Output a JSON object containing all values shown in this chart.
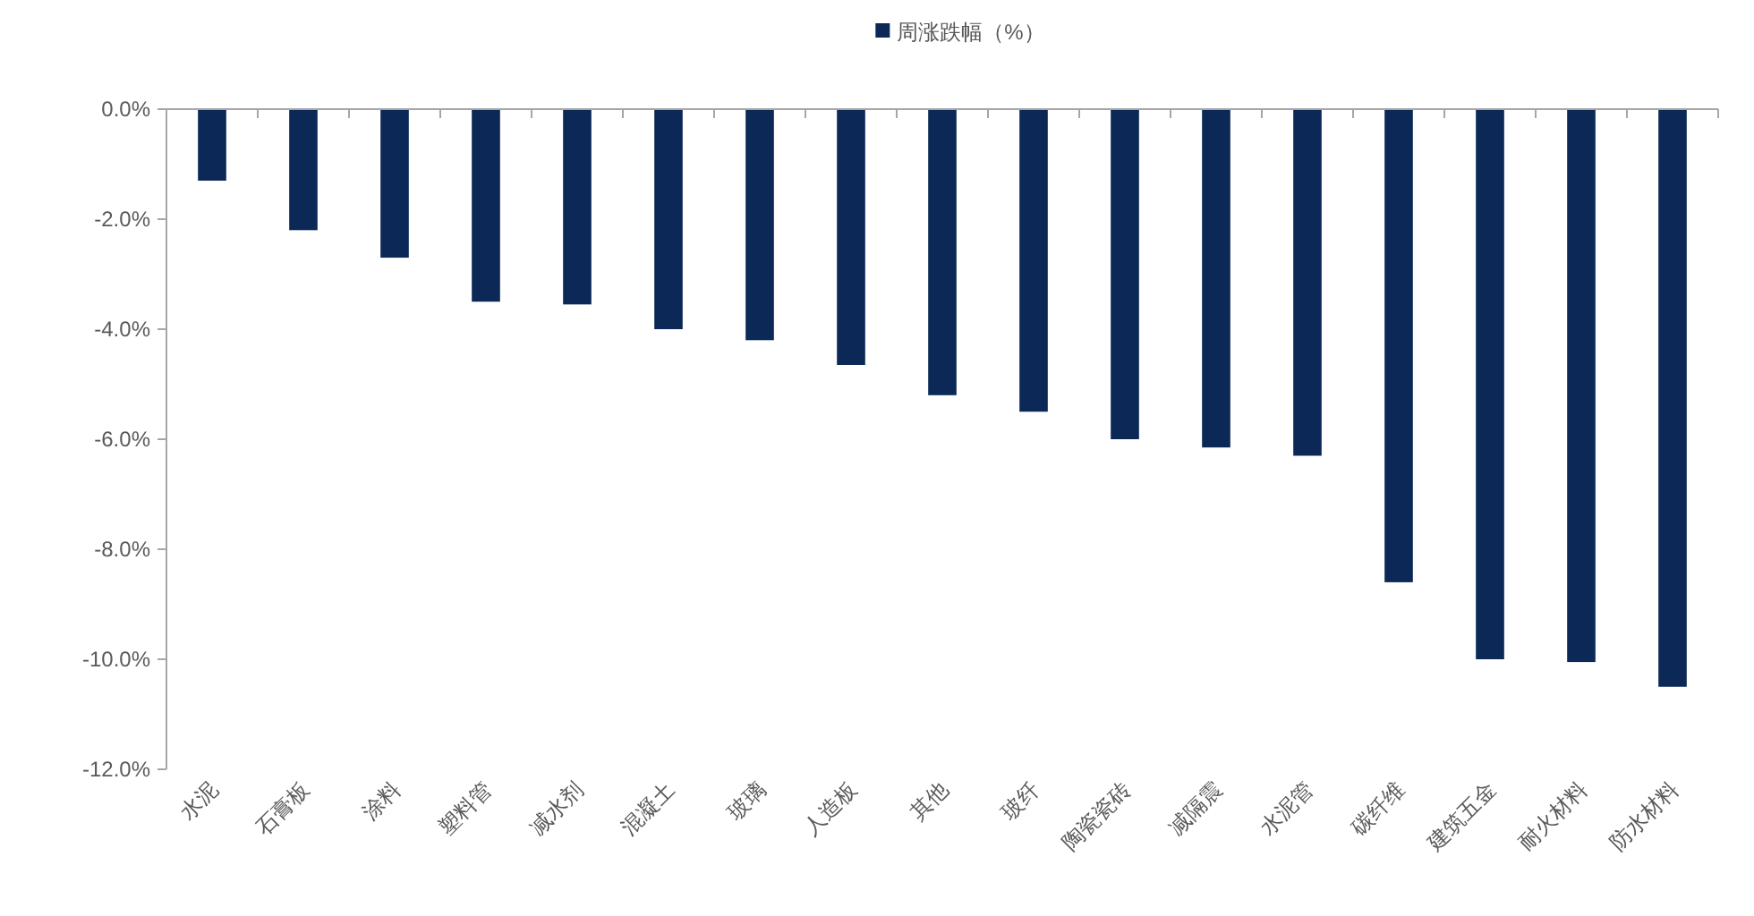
{
  "chart_data": {
    "type": "bar",
    "categories": [
      "水泥",
      "石膏板",
      "涂料",
      "塑料管",
      "减水剂",
      "混凝土",
      "玻璃",
      "人造板",
      "其他",
      "玻纤",
      "陶瓷瓷砖",
      "减隔震",
      "水泥管",
      "碳纤维",
      "建筑五金",
      "耐火材料",
      "防水材料"
    ],
    "series": [
      {
        "name": "周涨跌幅（%）",
        "color": "#0b2856",
        "values": [
          -1.3,
          -2.2,
          -2.7,
          -3.5,
          -3.55,
          -4.0,
          -4.2,
          -4.65,
          -5.2,
          -5.5,
          -6.0,
          -6.15,
          -6.3,
          -8.6,
          -10.0,
          -10.05,
          -10.5
        ]
      }
    ],
    "ylim": [
      -12,
      0
    ],
    "yticks": [
      {
        "value": 0,
        "label": "0.0%"
      },
      {
        "value": -2,
        "label": "-2.0%"
      },
      {
        "value": -4,
        "label": "-4.0%"
      },
      {
        "value": -6,
        "label": "-6.0%"
      },
      {
        "value": -8,
        "label": "-8.0%"
      },
      {
        "value": -10,
        "label": "-10.0%"
      },
      {
        "value": -12,
        "label": "-12.0%"
      }
    ],
    "legend": "top"
  }
}
